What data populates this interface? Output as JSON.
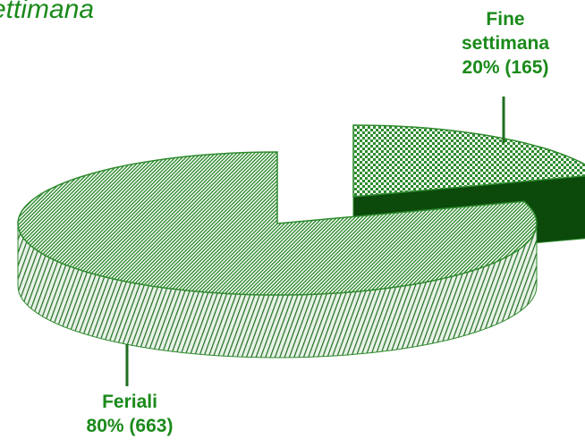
{
  "chart_data": {
    "type": "pie",
    "title": "ettimana",
    "categories": [
      "Feriali",
      "Fine settimana"
    ],
    "values": [
      80,
      20
    ],
    "value_labels": [
      "80% (663)",
      "20% (165)"
    ],
    "colors": [
      "#2e8b2e",
      "#2e8b2e"
    ],
    "exploded": [
      false,
      true
    ],
    "three_d": true
  }
}
